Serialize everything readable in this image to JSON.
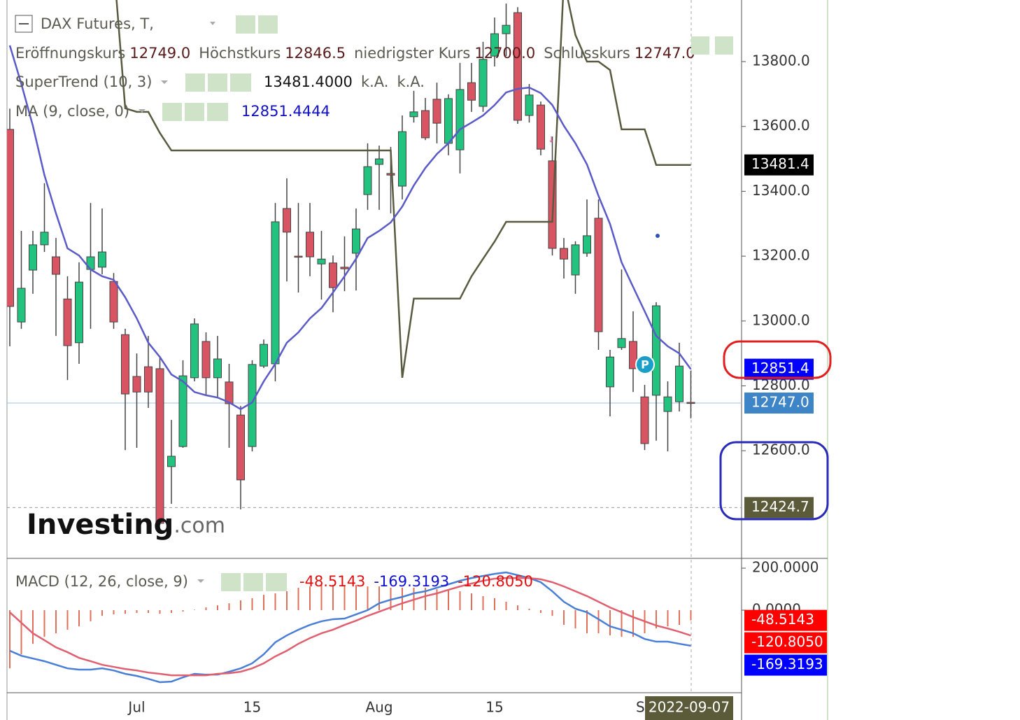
{
  "header": {
    "title": "DAX Futures, T,",
    "ohlc": [
      {
        "name": "Eröffnungskurs",
        "value": 12749,
        "label": "12749.0"
      },
      {
        "name": "Höchstkurs",
        "value": 12846.5,
        "label": "12846.5"
      },
      {
        "name": "niedrigster Kurs",
        "value": 12700,
        "label": "12700.0"
      },
      {
        "name": "Schlusskurs",
        "value": 12747,
        "label": "12747.0"
      }
    ],
    "supertrend": {
      "name": "SuperTrend (10, 3)",
      "value": 13481.4,
      "label": "13481.4000",
      "na": [
        "k.A.",
        "k.A."
      ]
    },
    "ma": {
      "name": "MA (9, close, 0)",
      "value": 12851.4444,
      "label": "12851.4444"
    },
    "macd": {
      "name": "MACD (12, 26, close, 9)",
      "values": [
        {
          "value": -48.5143,
          "label": "-48.5143"
        },
        {
          "value": -169.3193,
          "label": "-169.3193"
        },
        {
          "value": -120.805,
          "label": "-120.8050"
        }
      ]
    },
    "logo": [
      "Investing",
      ".com"
    ],
    "marker": "P"
  },
  "crosshair_date": "2022-09-07",
  "chart_data": [
    {
      "type": "candlestick",
      "categories": [
        null,
        null,
        null,
        null,
        null,
        null,
        null,
        null,
        null,
        null,
        null,
        "Jul",
        null,
        null,
        null,
        null,
        null,
        null,
        null,
        null,
        null,
        "15",
        null,
        null,
        null,
        null,
        null,
        null,
        null,
        null,
        null,
        null,
        "Aug",
        null,
        null,
        null,
        null,
        null,
        null,
        null,
        null,
        null,
        "15",
        null,
        null,
        null,
        null,
        null,
        null,
        null,
        null,
        null,
        null,
        null,
        null,
        "Se",
        null,
        null,
        null,
        null
      ],
      "open": [
        13591,
        12997,
        13157,
        13235,
        13198,
        13068,
        12933,
        13159,
        13166,
        13122,
        12958,
        12829,
        12859,
        12853,
        12551,
        12613,
        12825,
        12937,
        12825,
        12812,
        12710,
        12613,
        12861,
        12868,
        13347,
        13200,
        13274,
        13176,
        13179,
        13166,
        13209,
        13390,
        13483,
        13455,
        13416,
        13630,
        13649,
        13684,
        13548,
        13528,
        13735,
        13662,
        13817,
        13886,
        13951,
        13634,
        13666,
        13494,
        13224,
        13142,
        13209,
        13317,
        12797,
        12918,
        12937,
        12766,
        12771,
        12721,
        12751,
        12749
      ],
      "high": [
        13655,
        13278,
        13278,
        13425,
        13256,
        13138,
        13181,
        13364,
        13347,
        13148,
        12976,
        12900,
        12954,
        12889,
        12695,
        12879,
        13008,
        12965,
        12954,
        12868,
        12738,
        12879,
        12943,
        13364,
        13440,
        13364,
        13364,
        13278,
        13202,
        13261,
        13347,
        13548,
        13541,
        13537,
        13634,
        13710,
        13688,
        13735,
        13699,
        13796,
        13796,
        13861,
        13936,
        13979,
        13968,
        13731,
        13677,
        13569,
        13256,
        13246,
        13375,
        13375,
        12911,
        13159,
        13030,
        12803,
        13058,
        12814,
        12933,
        12846.5
      ],
      "low": [
        12922,
        12976,
        13084,
        13213,
        12954,
        12818,
        12868,
        12976,
        13144,
        12976,
        12602,
        12609,
        12732,
        12371,
        12436,
        12609,
        12814,
        12771,
        12764,
        12609,
        12419,
        12598,
        12855,
        12814,
        13122,
        13088,
        13138,
        13066,
        13027,
        13092,
        13094,
        13343,
        13343,
        13332,
        13375,
        13612,
        13558,
        13548,
        13511,
        13455,
        13645,
        13645,
        13785,
        13817,
        13608,
        13612,
        13511,
        13202,
        13131,
        13084,
        13198,
        12911,
        12706,
        12911,
        12781,
        12602,
        12631,
        12598,
        12721,
        12700
      ],
      "close": [
        13045,
        13101,
        13235,
        13274,
        13144,
        12924,
        13120,
        13198,
        13213,
        12997,
        12775,
        12781,
        12781,
        12376,
        12583,
        12831,
        12991,
        12825,
        12883,
        12745,
        12510,
        12866,
        12928,
        13306,
        13274,
        13198,
        13198,
        13191,
        13103,
        13161,
        13284,
        13476,
        13500,
        13450,
        13584,
        13645,
        13565,
        13610,
        13686,
        13714,
        13681,
        13807,
        13886,
        13912,
        13619,
        13697,
        13530,
        13224,
        13191,
        13235,
        13263,
        12967,
        12889,
        12946,
        12853,
        12622,
        13047,
        12766,
        12861,
        12747
      ],
      "up_color": "#22c27f",
      "down_color": "#d95462",
      "supertrend": {
        "color": "#5a5a40",
        "values": [
          null,
          null,
          null,
          null,
          null,
          null,
          null,
          null,
          null,
          14100,
          13656,
          13645,
          13645,
          13580,
          13526,
          13526,
          13526,
          13526,
          13526,
          13526,
          13526,
          13526,
          13526,
          13526,
          13526,
          13526,
          13526,
          13526,
          13526,
          13526,
          13526,
          13526,
          13526,
          13526,
          12825,
          13069,
          13069,
          13069,
          13069,
          13069,
          13138,
          13192,
          13245,
          13306,
          13306,
          13306,
          13306,
          13306,
          14050,
          13882,
          13800,
          13800,
          13774,
          13591,
          13591,
          13591,
          13481.4,
          13481.4,
          13481.4,
          13481.4
        ]
      },
      "ma": {
        "color": "#5a5ac8",
        "values": [
          13850,
          13731,
          13602,
          13450,
          13332,
          13224,
          13202,
          13159,
          13138,
          13127,
          13073,
          13008,
          12933,
          12889,
          12835,
          12814,
          12781,
          12771,
          12764,
          12749,
          12728,
          12749,
          12814,
          12868,
          12933,
          12965,
          13008,
          13040,
          13088,
          13138,
          13192,
          13256,
          13278,
          13304,
          13353,
          13418,
          13472,
          13515,
          13548,
          13591,
          13612,
          13634,
          13666,
          13705,
          13716,
          13720,
          13703,
          13666,
          13602,
          13548,
          13483,
          13386,
          13299,
          13181,
          13105,
          13030,
          12954,
          12922,
          12900,
          12851.4444
        ]
      },
      "ylim": [
        12268,
        13990
      ],
      "yticks": [
        {
          "value": 12600,
          "label": "12600.0"
        },
        {
          "value": 12800,
          "label": "12800.0"
        },
        {
          "value": 13000,
          "label": "13000.0"
        },
        {
          "value": 13200,
          "label": "13200.0"
        },
        {
          "value": 13400,
          "label": "13400.0"
        },
        {
          "value": 13600,
          "label": "13600.0"
        },
        {
          "value": 13800,
          "label": "13800.0"
        }
      ],
      "price_labels": [
        {
          "value": 13481.4,
          "label": "13481.4",
          "color": "#000000"
        },
        {
          "value": 12851.4,
          "label": "12851.4",
          "color": "#0000ff"
        },
        {
          "value": 12747,
          "label": "12747.0",
          "color": "#3d85c6",
          "line": "solid"
        },
        {
          "value": 12424.7,
          "label": "12424.7",
          "color": "#5b5b3a",
          "line": "dashed"
        }
      ]
    },
    {
      "type": "macd",
      "histogram": {
        "color": "#e0705a",
        "values": [
          -277,
          -210,
          -160,
          -127,
          -110,
          -93,
          -77,
          -53,
          -27,
          -20,
          -17,
          -13,
          -13,
          -17,
          -13,
          -7,
          2,
          13,
          23,
          33,
          47,
          57,
          73,
          80,
          90,
          107,
          113,
          120,
          120,
          120,
          120,
          113,
          113,
          107,
          107,
          107,
          107,
          100,
          97,
          90,
          80,
          67,
          57,
          40,
          23,
          7,
          -13,
          -27,
          -70,
          -87,
          -110,
          -110,
          -120,
          -127,
          -127,
          -110,
          -87,
          -77,
          -70,
          -48.5143
        ]
      },
      "macd": {
        "color": "#4a7fd6",
        "values": [
          -193,
          -217,
          -230,
          -243,
          -260,
          -277,
          -283,
          -283,
          -277,
          -287,
          -303,
          -313,
          -327,
          -343,
          -340,
          -320,
          -303,
          -307,
          -307,
          -293,
          -277,
          -253,
          -210,
          -153,
          -120,
          -93,
          -70,
          -53,
          -43,
          -40,
          -20,
          0,
          33,
          50,
          63,
          80,
          90,
          107,
          123,
          140,
          153,
          163,
          173,
          180,
          167,
          153,
          133,
          90,
          40,
          7,
          -10,
          -43,
          -77,
          -93,
          -110,
          -137,
          -150,
          -150,
          -160,
          -169.3193
        ]
      },
      "signal": {
        "color": "#e06070",
        "values": [
          -10,
          -60,
          -110,
          -143,
          -177,
          -200,
          -227,
          -243,
          -260,
          -270,
          -280,
          -287,
          -297,
          -303,
          -310,
          -310,
          -310,
          -310,
          -303,
          -300,
          -293,
          -277,
          -253,
          -220,
          -193,
          -160,
          -133,
          -110,
          -93,
          -70,
          -50,
          -27,
          -7,
          13,
          33,
          50,
          67,
          80,
          97,
          113,
          127,
          140,
          150,
          153,
          153,
          153,
          147,
          133,
          113,
          90,
          67,
          40,
          13,
          -10,
          -33,
          -53,
          -73,
          -87,
          -103,
          -120.805
        ]
      },
      "ylim": [
        -393,
        240
      ],
      "yticks": [
        {
          "value": 0,
          "label": "0.0000"
        },
        {
          "value": 200,
          "label": "200.0000"
        }
      ],
      "price_labels": [
        {
          "value": -48.5143,
          "label": "-48.5143",
          "color": "#ff0000"
        },
        {
          "value": -120.805,
          "label": "-120.8050",
          "color": "#ff0000"
        },
        {
          "value": -169.3193,
          "label": "-169.3193",
          "color": "#0000ff"
        }
      ]
    }
  ]
}
